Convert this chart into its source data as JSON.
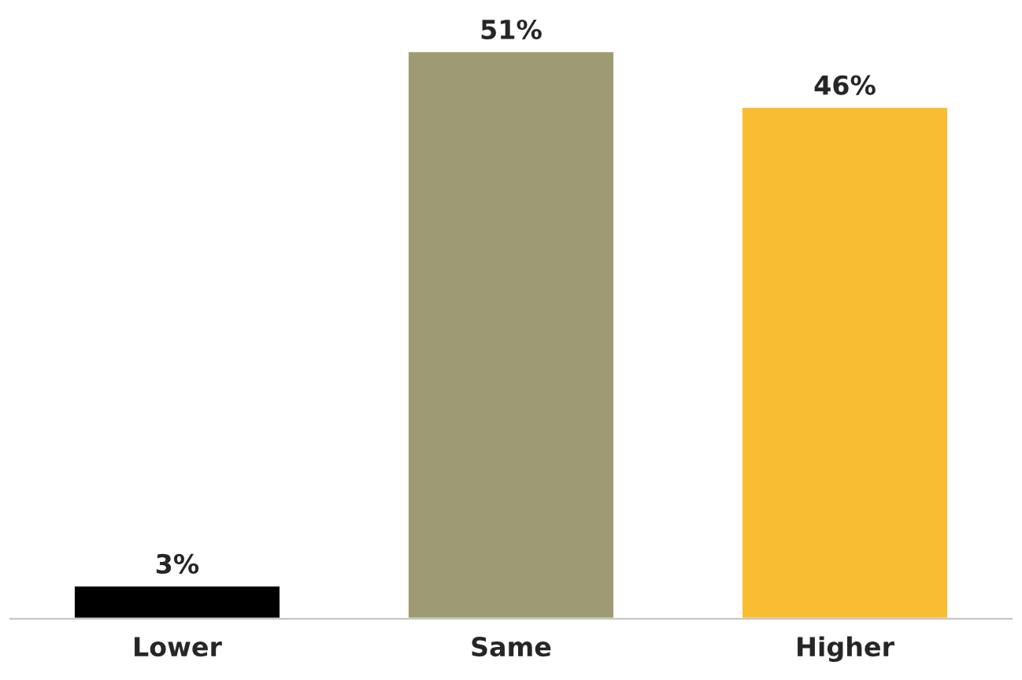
{
  "chart_data": {
    "type": "bar",
    "categories": [
      "Lower",
      "Same",
      "Higher"
    ],
    "values": [
      3,
      51,
      46
    ],
    "colors": [
      "#000000",
      "#9e9b74",
      "#f9bd34"
    ],
    "value_labels": [
      "3%",
      "51%",
      "46%"
    ],
    "grid": false,
    "legend": false
  }
}
